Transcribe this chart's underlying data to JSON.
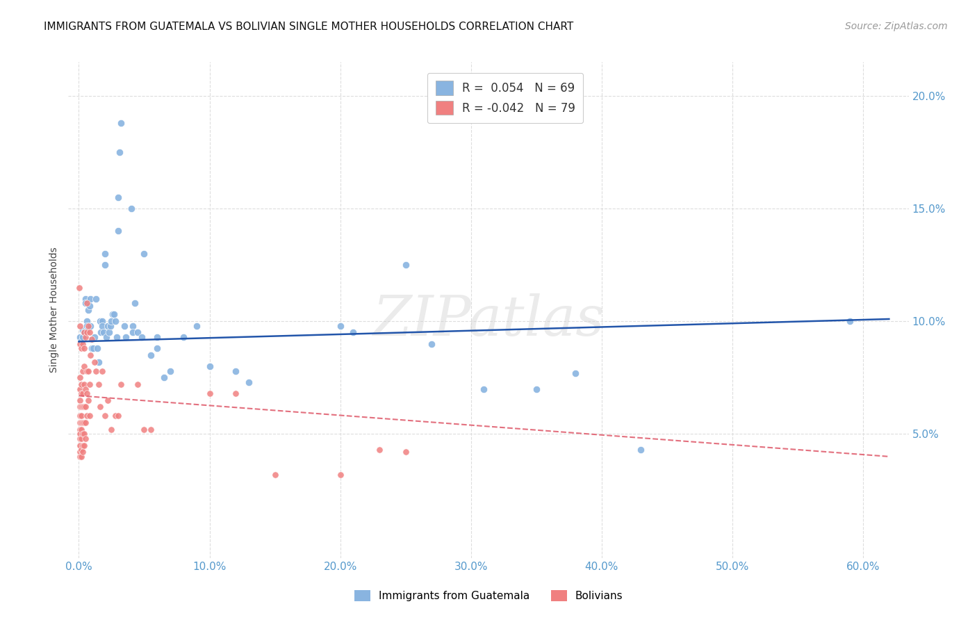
{
  "title": "IMMIGRANTS FROM GUATEMALA VS BOLIVIAN SINGLE MOTHER HOUSEHOLDS CORRELATION CHART",
  "source": "Source: ZipAtlas.com",
  "ylabel": "Single Mother Households",
  "xlabel_ticks": [
    "0.0%",
    "10.0%",
    "20.0%",
    "30.0%",
    "40.0%",
    "50.0%",
    "60.0%"
  ],
  "xlabel_vals": [
    0.0,
    0.1,
    0.2,
    0.3,
    0.4,
    0.5,
    0.6
  ],
  "ylabel_ticks_right": [
    "5.0%",
    "10.0%",
    "15.0%",
    "20.0%"
  ],
  "ylabel_vals_right": [
    0.05,
    0.1,
    0.15,
    0.2
  ],
  "xlim": [
    -0.008,
    0.635
  ],
  "ylim": [
    -0.005,
    0.215
  ],
  "legend1_R": "0.054",
  "legend1_N": "69",
  "legend2_R": "-0.042",
  "legend2_N": "79",
  "blue_color": "#89B4E0",
  "pink_color": "#F08080",
  "trend_blue": "#2255AA",
  "trend_pink": "#E06070",
  "watermark": "ZIPatlas",
  "scatter_blue": [
    [
      0.001,
      0.093
    ],
    [
      0.002,
      0.091
    ],
    [
      0.003,
      0.093
    ],
    [
      0.003,
      0.096
    ],
    [
      0.004,
      0.095
    ],
    [
      0.005,
      0.11
    ],
    [
      0.005,
      0.108
    ],
    [
      0.006,
      0.1
    ],
    [
      0.006,
      0.098
    ],
    [
      0.007,
      0.105
    ],
    [
      0.007,
      0.097
    ],
    [
      0.008,
      0.107
    ],
    [
      0.009,
      0.11
    ],
    [
      0.009,
      0.098
    ],
    [
      0.01,
      0.092
    ],
    [
      0.01,
      0.088
    ],
    [
      0.011,
      0.088
    ],
    [
      0.012,
      0.093
    ],
    [
      0.013,
      0.11
    ],
    [
      0.014,
      0.088
    ],
    [
      0.015,
      0.082
    ],
    [
      0.016,
      0.1
    ],
    [
      0.017,
      0.095
    ],
    [
      0.018,
      0.1
    ],
    [
      0.018,
      0.098
    ],
    [
      0.019,
      0.095
    ],
    [
      0.02,
      0.13
    ],
    [
      0.02,
      0.125
    ],
    [
      0.021,
      0.093
    ],
    [
      0.022,
      0.098
    ],
    [
      0.023,
      0.095
    ],
    [
      0.024,
      0.098
    ],
    [
      0.025,
      0.1
    ],
    [
      0.026,
      0.103
    ],
    [
      0.027,
      0.103
    ],
    [
      0.028,
      0.1
    ],
    [
      0.029,
      0.093
    ],
    [
      0.03,
      0.14
    ],
    [
      0.03,
      0.155
    ],
    [
      0.031,
      0.175
    ],
    [
      0.032,
      0.188
    ],
    [
      0.035,
      0.098
    ],
    [
      0.036,
      0.093
    ],
    [
      0.04,
      0.15
    ],
    [
      0.041,
      0.098
    ],
    [
      0.041,
      0.095
    ],
    [
      0.043,
      0.108
    ],
    [
      0.045,
      0.095
    ],
    [
      0.048,
      0.093
    ],
    [
      0.05,
      0.13
    ],
    [
      0.055,
      0.085
    ],
    [
      0.06,
      0.093
    ],
    [
      0.06,
      0.088
    ],
    [
      0.065,
      0.075
    ],
    [
      0.07,
      0.078
    ],
    [
      0.08,
      0.093
    ],
    [
      0.09,
      0.098
    ],
    [
      0.1,
      0.08
    ],
    [
      0.12,
      0.078
    ],
    [
      0.13,
      0.073
    ],
    [
      0.2,
      0.098
    ],
    [
      0.21,
      0.095
    ],
    [
      0.25,
      0.125
    ],
    [
      0.27,
      0.09
    ],
    [
      0.31,
      0.07
    ],
    [
      0.35,
      0.07
    ],
    [
      0.38,
      0.077
    ],
    [
      0.43,
      0.043
    ],
    [
      0.59,
      0.1
    ]
  ],
  "scatter_pink": [
    [
      0.0005,
      0.115
    ],
    [
      0.001,
      0.098
    ],
    [
      0.001,
      0.09
    ],
    [
      0.001,
      0.075
    ],
    [
      0.001,
      0.07
    ],
    [
      0.001,
      0.065
    ],
    [
      0.001,
      0.062
    ],
    [
      0.001,
      0.058
    ],
    [
      0.001,
      0.055
    ],
    [
      0.001,
      0.052
    ],
    [
      0.001,
      0.05
    ],
    [
      0.001,
      0.048
    ],
    [
      0.001,
      0.045
    ],
    [
      0.001,
      0.042
    ],
    [
      0.001,
      0.04
    ],
    [
      0.002,
      0.088
    ],
    [
      0.002,
      0.072
    ],
    [
      0.002,
      0.068
    ],
    [
      0.002,
      0.062
    ],
    [
      0.002,
      0.058
    ],
    [
      0.002,
      0.055
    ],
    [
      0.002,
      0.052
    ],
    [
      0.002,
      0.048
    ],
    [
      0.002,
      0.043
    ],
    [
      0.002,
      0.04
    ],
    [
      0.003,
      0.09
    ],
    [
      0.003,
      0.078
    ],
    [
      0.003,
      0.068
    ],
    [
      0.003,
      0.062
    ],
    [
      0.003,
      0.055
    ],
    [
      0.003,
      0.05
    ],
    [
      0.003,
      0.045
    ],
    [
      0.003,
      0.042
    ],
    [
      0.004,
      0.095
    ],
    [
      0.004,
      0.088
    ],
    [
      0.004,
      0.08
    ],
    [
      0.004,
      0.072
    ],
    [
      0.004,
      0.062
    ],
    [
      0.004,
      0.055
    ],
    [
      0.004,
      0.05
    ],
    [
      0.004,
      0.045
    ],
    [
      0.005,
      0.093
    ],
    [
      0.005,
      0.07
    ],
    [
      0.005,
      0.062
    ],
    [
      0.005,
      0.055
    ],
    [
      0.005,
      0.048
    ],
    [
      0.006,
      0.108
    ],
    [
      0.006,
      0.095
    ],
    [
      0.006,
      0.078
    ],
    [
      0.006,
      0.068
    ],
    [
      0.006,
      0.058
    ],
    [
      0.007,
      0.098
    ],
    [
      0.007,
      0.078
    ],
    [
      0.007,
      0.065
    ],
    [
      0.008,
      0.095
    ],
    [
      0.008,
      0.072
    ],
    [
      0.008,
      0.058
    ],
    [
      0.009,
      0.085
    ],
    [
      0.01,
      0.092
    ],
    [
      0.012,
      0.082
    ],
    [
      0.013,
      0.078
    ],
    [
      0.015,
      0.072
    ],
    [
      0.016,
      0.062
    ],
    [
      0.018,
      0.078
    ],
    [
      0.02,
      0.058
    ],
    [
      0.022,
      0.065
    ],
    [
      0.025,
      0.052
    ],
    [
      0.028,
      0.058
    ],
    [
      0.03,
      0.058
    ],
    [
      0.032,
      0.072
    ],
    [
      0.045,
      0.072
    ],
    [
      0.05,
      0.052
    ],
    [
      0.055,
      0.052
    ],
    [
      0.1,
      0.068
    ],
    [
      0.12,
      0.068
    ],
    [
      0.15,
      0.032
    ],
    [
      0.2,
      0.032
    ],
    [
      0.23,
      0.043
    ],
    [
      0.25,
      0.042
    ]
  ],
  "blue_trend_x": [
    0.0,
    0.62
  ],
  "blue_trend_y": [
    0.091,
    0.101
  ],
  "pink_trend_x": [
    0.0,
    0.62
  ],
  "pink_trend_y": [
    0.067,
    0.04
  ],
  "grid_color": "#DDDDDD",
  "tick_color": "#5599CC",
  "title_fontsize": 11,
  "source_fontsize": 10,
  "ylabel_fontsize": 10,
  "tick_fontsize": 11
}
